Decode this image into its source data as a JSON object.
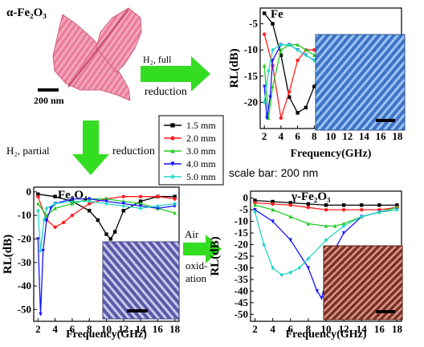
{
  "labels": {
    "alpha": "α-Fe₂O₃",
    "fe": "Fe",
    "fe3o4": "Fe₃O₄",
    "gamma": "γ-Fe₂O₃",
    "scale_tl": "200 nm",
    "h2_full_a": "H₂, full",
    "h2_full_b": "reduction",
    "h2_partial_a": "H₂, partial",
    "h2_partial_b": "reduction",
    "air": "Air",
    "oxid1": "oxid-",
    "oxid2": "ation",
    "scalebar": "scale bar: 200 nm"
  },
  "legend": [
    {
      "label": "1.5 mm",
      "color": "#000000",
      "marker": "square"
    },
    {
      "label": "2.0 mm",
      "color": "#ff1f1f",
      "marker": "circle"
    },
    {
      "label": "3.0 mm",
      "color": "#22cc22",
      "marker": "triangle-up"
    },
    {
      "label": "4.0 mm",
      "color": "#1515ff",
      "marker": "triangle-down"
    },
    {
      "label": "5.0 mm",
      "color": "#22d6c8",
      "marker": "diamond"
    }
  ],
  "chart_data": [
    {
      "type": "line",
      "name": "Fe",
      "xlabel": "Frequency(GHz)",
      "ylabel": "RL(dB)",
      "xlim": [
        1.5,
        18.5
      ],
      "ylim": [
        -25,
        -2
      ],
      "xticks": [
        2,
        4,
        6,
        8,
        10,
        12,
        14,
        16,
        18
      ],
      "yticks": [
        -5,
        -10,
        -15,
        -20
      ],
      "series": [
        {
          "name": "1.5 mm",
          "x": [
            2,
            3,
            4,
            5,
            6,
            7,
            8,
            9,
            10
          ],
          "y": [
            -3,
            -5,
            -11,
            -19,
            -22,
            -21,
            -17,
            -13,
            -10
          ]
        },
        {
          "name": "2.0 mm",
          "x": [
            2,
            3,
            4,
            5,
            6,
            7,
            8,
            9,
            10
          ],
          "y": [
            -7,
            -13,
            -23,
            -18,
            -12,
            -10,
            -10,
            -11,
            -12
          ]
        },
        {
          "name": "3.0 mm",
          "x": [
            2,
            2.5,
            3,
            4,
            5,
            6,
            7,
            8,
            9,
            10
          ],
          "y": [
            -13,
            -23,
            -17,
            -10,
            -9,
            -9,
            -10,
            -11,
            -12,
            -12
          ]
        },
        {
          "name": "4.0 mm",
          "x": [
            2,
            2.3,
            2.7,
            3,
            4,
            5,
            6,
            7,
            8,
            9,
            10
          ],
          "y": [
            -17,
            -23,
            -19,
            -12,
            -9,
            -9,
            -10,
            -11,
            -12,
            -12,
            -12
          ]
        },
        {
          "name": "5.0 mm",
          "x": [
            2,
            2.5,
            3,
            4,
            5,
            6,
            7,
            8,
            9,
            10
          ],
          "y": [
            -20,
            -14,
            -10,
            -9,
            -9,
            -10,
            -11,
            -12,
            -12,
            -12
          ]
        }
      ]
    },
    {
      "type": "line",
      "name": "Fe3O4",
      "xlabel": "Frequency(GHz)",
      "ylabel": "RL(dB)",
      "xlim": [
        1.5,
        18.5
      ],
      "ylim": [
        -55,
        2
      ],
      "xticks": [
        2,
        4,
        6,
        8,
        10,
        12,
        14,
        16,
        18
      ],
      "yticks": [
        0,
        -10,
        -20,
        -30,
        -40,
        -50
      ],
      "series": [
        {
          "name": "1.5 mm",
          "x": [
            2,
            4,
            6,
            8,
            9,
            10,
            10.5,
            11,
            12,
            14,
            16,
            18
          ],
          "y": [
            -1,
            -2,
            -4,
            -8,
            -12,
            -18,
            -20,
            -17,
            -8,
            -4,
            -2,
            -2
          ]
        },
        {
          "name": "2.0 mm",
          "x": [
            2,
            3,
            4,
            5,
            6,
            8,
            10,
            12,
            14,
            16,
            18
          ],
          "y": [
            -2,
            -12,
            -15,
            -13,
            -10,
            -5,
            -3,
            -2,
            -2,
            -2,
            -3
          ]
        },
        {
          "name": "3.0 mm",
          "x": [
            2,
            3,
            4,
            6,
            8,
            10,
            12,
            14,
            16,
            18
          ],
          "y": [
            -5,
            -10,
            -7,
            -5,
            -3,
            -3,
            -4,
            -5,
            -7,
            -9
          ]
        },
        {
          "name": "4.0 mm",
          "x": [
            2,
            2.3,
            2.6,
            3,
            3.5,
            4,
            6,
            8,
            10,
            12,
            14,
            16,
            18
          ],
          "y": [
            -20,
            -52,
            -25,
            -12,
            -7,
            -5,
            -3,
            -3,
            -4,
            -5,
            -6,
            -7,
            -6
          ]
        },
        {
          "name": "5.0 mm",
          "x": [
            2,
            2.3,
            2.7,
            3,
            4,
            6,
            8,
            10,
            12,
            14,
            16,
            18
          ],
          "y": [
            -8,
            -25,
            -12,
            -7,
            -5,
            -4,
            -4,
            -5,
            -6,
            -7,
            -6,
            -5
          ]
        }
      ]
    },
    {
      "type": "line",
      "name": "gamma-Fe2O3",
      "xlabel": "Frequency(GHz)",
      "ylabel": "RL(dB)",
      "xlim": [
        1.5,
        18.5
      ],
      "ylim": [
        -53,
        3
      ],
      "xticks": [
        2,
        4,
        6,
        8,
        10,
        12,
        14,
        16,
        18
      ],
      "yticks": [
        0,
        -5,
        -10,
        -15,
        -20,
        -25,
        -30,
        -35,
        -40,
        -45,
        -50
      ],
      "series": [
        {
          "name": "1.5 mm",
          "x": [
            2,
            4,
            6,
            8,
            10,
            12,
            14,
            16,
            18
          ],
          "y": [
            -1,
            -1.5,
            -2,
            -2.5,
            -3,
            -3,
            -3,
            -3,
            -3
          ]
        },
        {
          "name": "2.0 mm",
          "x": [
            2,
            4,
            6,
            8,
            10,
            12,
            14,
            16,
            18
          ],
          "y": [
            -2,
            -2.5,
            -3,
            -4,
            -5,
            -5,
            -5,
            -5,
            -4
          ]
        },
        {
          "name": "3.0 mm",
          "x": [
            2,
            4,
            6,
            8,
            10,
            11,
            12,
            14,
            16,
            18
          ],
          "y": [
            -3,
            -5,
            -8,
            -11,
            -12,
            -12,
            -11,
            -8,
            -6,
            -4
          ]
        },
        {
          "name": "4.0 mm",
          "x": [
            2,
            4,
            6,
            8,
            9,
            9.5,
            10,
            11,
            12,
            14,
            16,
            18
          ],
          "y": [
            -5,
            -10,
            -18,
            -30,
            -40,
            -43,
            -35,
            -22,
            -15,
            -8,
            -6,
            -5
          ]
        },
        {
          "name": "5.0 mm",
          "x": [
            2,
            3,
            4,
            5,
            6,
            7,
            8,
            10,
            12,
            14,
            16,
            18
          ],
          "y": [
            -6,
            -20,
            -30,
            -33,
            -32,
            -30,
            -26,
            -18,
            -12,
            -8,
            -6,
            -5
          ]
        }
      ]
    }
  ]
}
